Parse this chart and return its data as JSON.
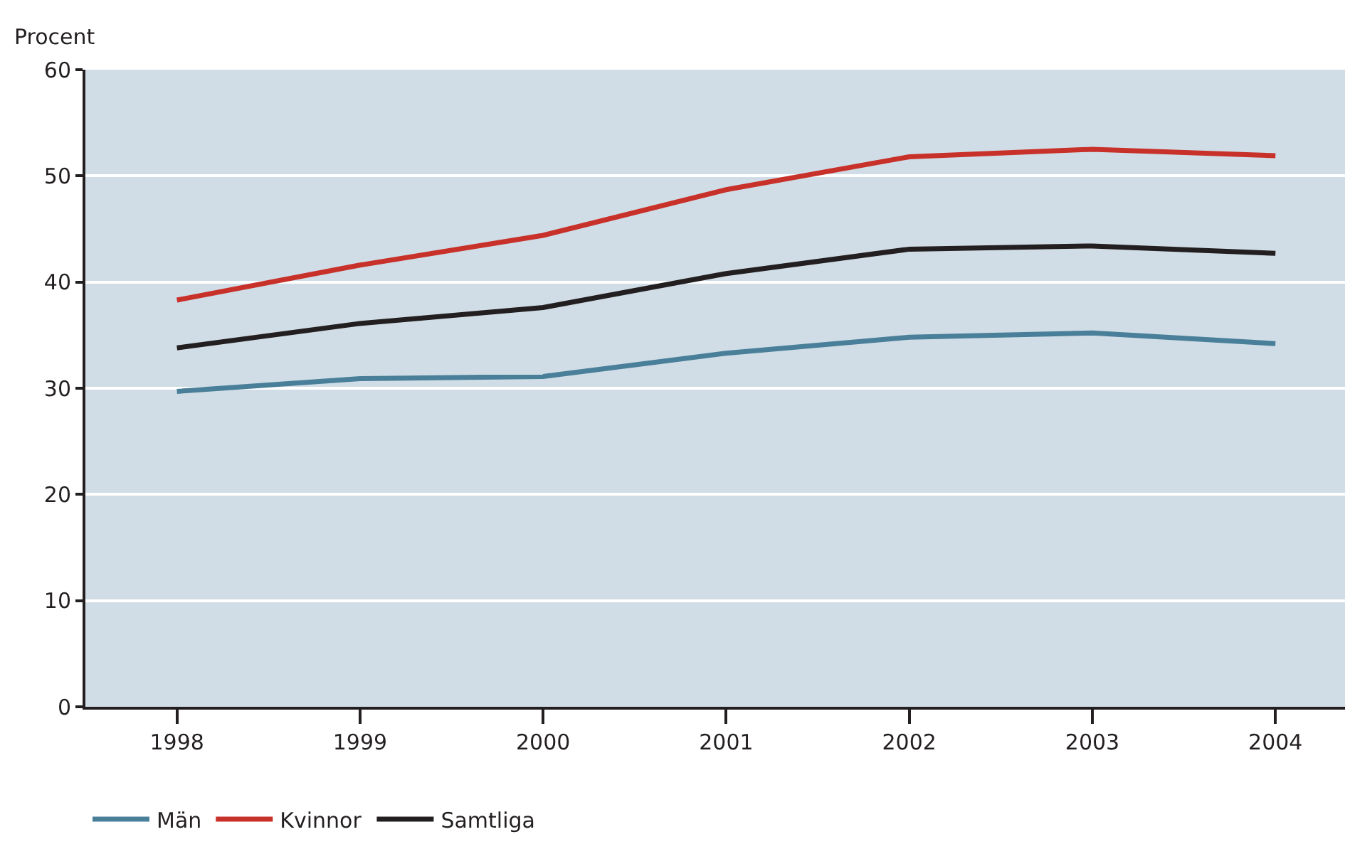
{
  "chart_data": {
    "type": "line",
    "ylabel": "Procent",
    "x": [
      1998,
      1999,
      2000,
      2001,
      2002,
      2003,
      2004
    ],
    "xlim": [
      1997.5,
      2004.38
    ],
    "xticks": [
      1998,
      1999,
      2000,
      2001,
      2002,
      2003,
      2004
    ],
    "ylim": [
      0,
      60
    ],
    "yticks": [
      0,
      10,
      20,
      30,
      40,
      50,
      60
    ],
    "grid": "y",
    "legend": "bottom left",
    "marker": "none",
    "line_style": "solid",
    "series": [
      {
        "name": "Män",
        "color": "#4a7f99",
        "values": [
          29.7,
          30.9,
          31.1,
          33.3,
          34.8,
          35.2,
          34.2
        ]
      },
      {
        "name": "Kvinnor",
        "color": "#c8312a",
        "values": [
          38.3,
          41.6,
          44.4,
          48.7,
          51.8,
          52.5,
          51.9
        ]
      },
      {
        "name": "Samtliga",
        "color": "#231f20",
        "values": [
          33.8,
          36.1,
          37.6,
          40.8,
          43.1,
          43.4,
          42.7
        ]
      }
    ]
  }
}
